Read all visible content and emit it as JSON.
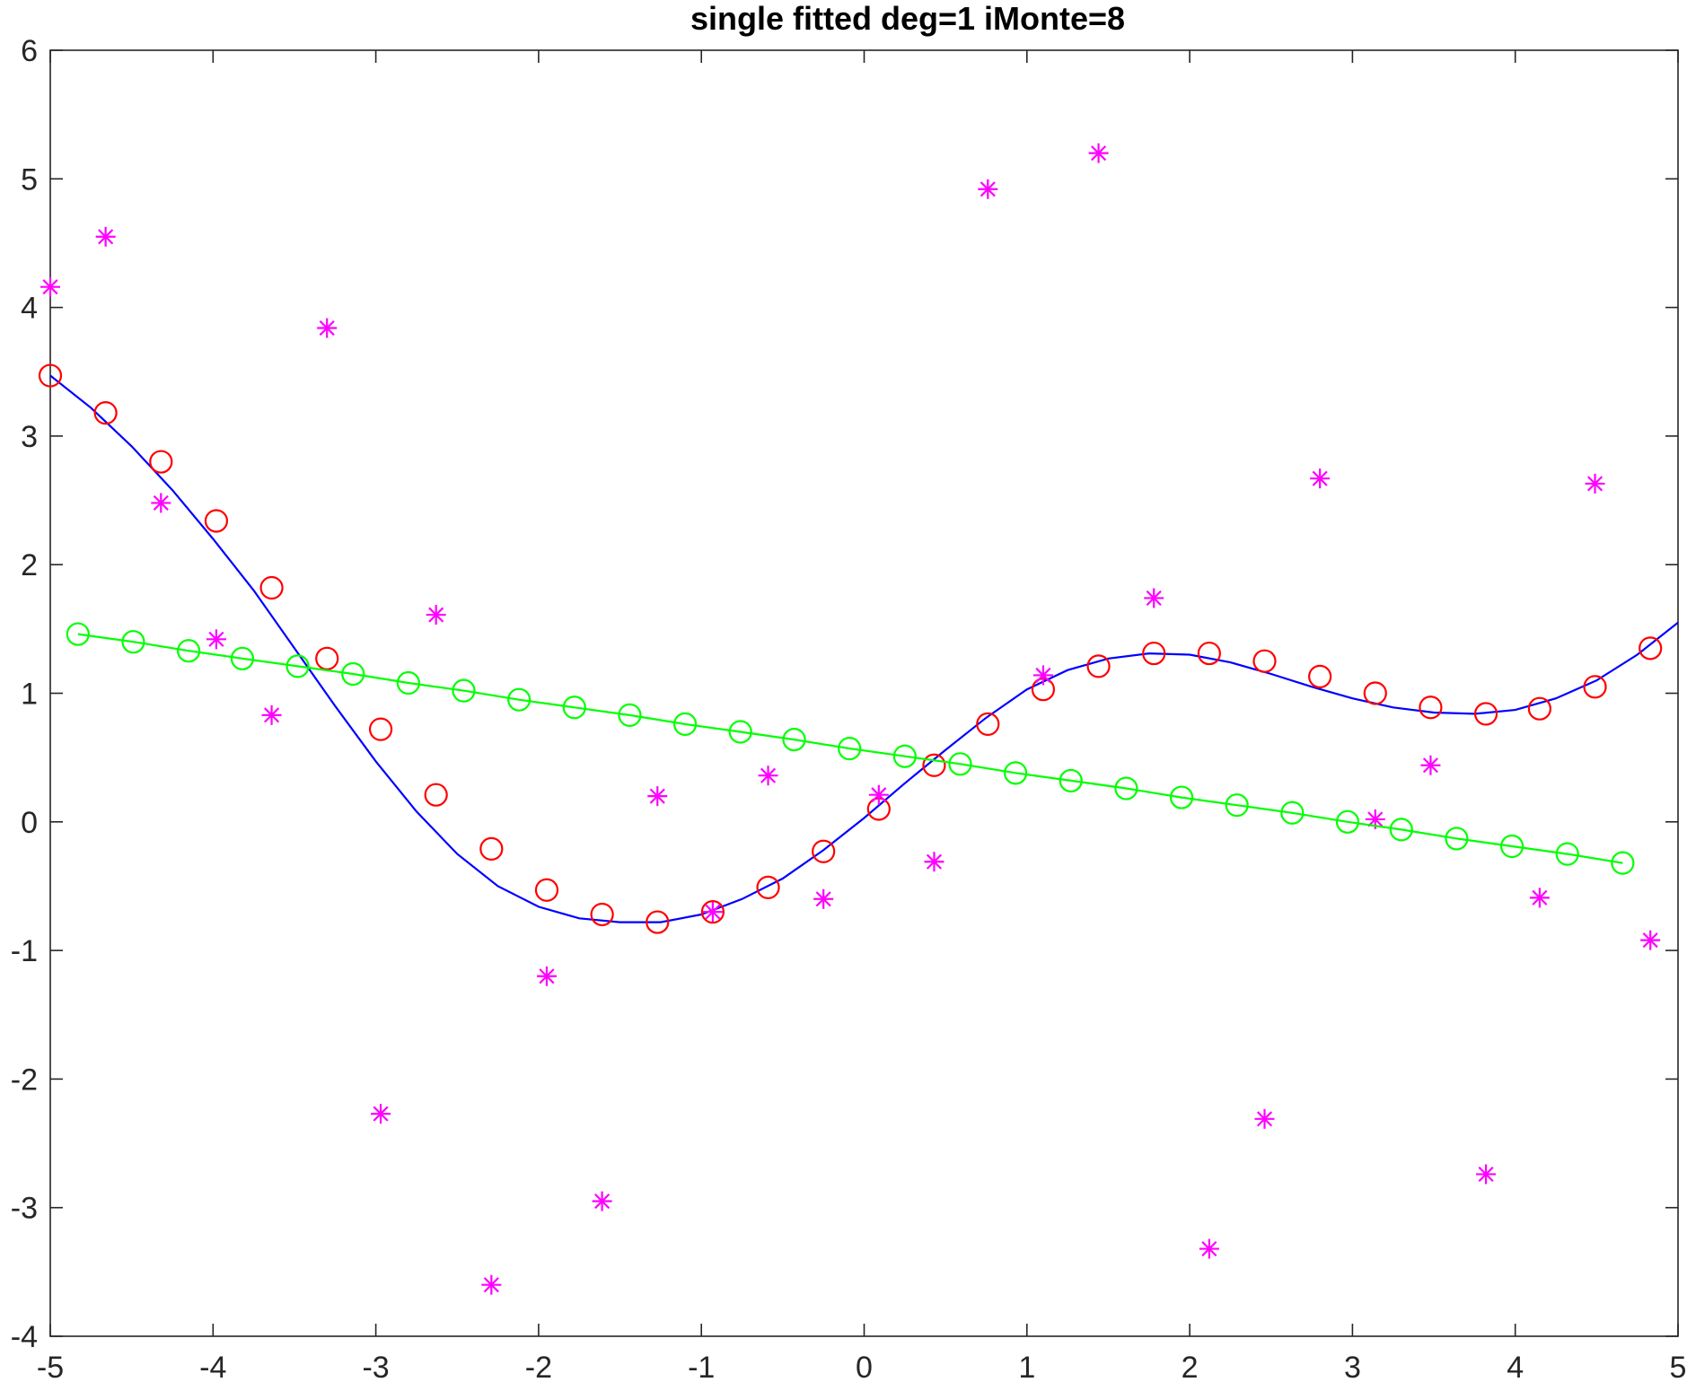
{
  "chart_data": {
    "type": "scatter",
    "title": "single fitted deg=1 iMonte=8",
    "xlabel": "",
    "ylabel": "",
    "xlim": [
      -5,
      5
    ],
    "ylim": [
      -4,
      6
    ],
    "x_ticks": [
      -5,
      -4,
      -3,
      -2,
      -1,
      0,
      1,
      2,
      3,
      4,
      5
    ],
    "y_ticks": [
      -4,
      -3,
      -2,
      -1,
      0,
      1,
      2,
      3,
      4,
      5,
      6
    ],
    "grid": false,
    "legend": "none",
    "series": [
      {
        "kind": "curve",
        "style": "line",
        "color": "#0000ff",
        "x": [
          -5,
          -4.75,
          -4.5,
          -4.25,
          -4,
          -3.75,
          -3.5,
          -3.25,
          -3,
          -2.75,
          -2.5,
          -2.25,
          -2,
          -1.75,
          -1.5,
          -1.25,
          -1,
          -0.75,
          -0.5,
          -0.25,
          0,
          0.25,
          0.5,
          0.75,
          1,
          1.25,
          1.5,
          1.75,
          2,
          2.25,
          2.5,
          2.75,
          3,
          3.25,
          3.5,
          3.75,
          4,
          4.25,
          4.5,
          4.75,
          5
        ],
        "y": [
          3.47,
          3.22,
          2.92,
          2.58,
          2.2,
          1.8,
          1.35,
          0.9,
          0.47,
          0.08,
          -0.25,
          -0.5,
          -0.66,
          -0.75,
          -0.78,
          -0.78,
          -0.72,
          -0.6,
          -0.44,
          -0.22,
          0.03,
          0.3,
          0.56,
          0.81,
          1.03,
          1.18,
          1.27,
          1.31,
          1.3,
          1.24,
          1.15,
          1.05,
          0.96,
          0.89,
          0.85,
          0.84,
          0.87,
          0.96,
          1.1,
          1.3,
          1.55
        ]
      },
      {
        "kind": "fit-samples",
        "style": "circle",
        "color": "#ff0000",
        "x": [
          -5.0,
          -4.66,
          -4.32,
          -3.98,
          -3.64,
          -3.3,
          -2.97,
          -2.63,
          -2.29,
          -1.95,
          -1.61,
          -1.27,
          -0.93,
          -0.59,
          -0.25,
          0.09,
          0.43,
          0.76,
          1.1,
          1.44,
          1.78,
          2.12,
          2.46,
          2.8,
          3.14,
          3.48,
          3.82,
          4.15,
          4.49,
          4.83
        ],
        "y": [
          3.47,
          3.18,
          2.8,
          2.34,
          1.82,
          1.27,
          0.72,
          0.21,
          -0.21,
          -0.53,
          -0.72,
          -0.78,
          -0.7,
          -0.51,
          -0.23,
          0.1,
          0.44,
          0.76,
          1.03,
          1.21,
          1.31,
          1.31,
          1.25,
          1.13,
          1.0,
          0.89,
          0.84,
          0.88,
          1.05,
          1.35
        ]
      },
      {
        "kind": "noisy-data",
        "style": "asterisk",
        "color": "#ff00ff",
        "x": [
          -5.0,
          -4.66,
          -4.32,
          -3.98,
          -3.64,
          -3.3,
          -2.97,
          -2.63,
          -2.29,
          -1.95,
          -1.61,
          -1.27,
          -0.93,
          -0.59,
          -0.25,
          0.09,
          0.43,
          0.76,
          1.1,
          1.44,
          1.78,
          2.12,
          2.46,
          2.8,
          3.14,
          3.48,
          3.82,
          4.15,
          4.49,
          4.83
        ],
        "y": [
          4.16,
          4.55,
          2.48,
          1.42,
          0.83,
          3.84,
          -2.27,
          1.61,
          -3.6,
          -1.2,
          -2.95,
          0.2,
          -0.7,
          0.36,
          -0.6,
          0.21,
          -0.31,
          4.92,
          1.14,
          5.2,
          1.74,
          -3.32,
          -2.31,
          2.67,
          0.02,
          0.44,
          -2.74,
          -0.59,
          2.63,
          -0.92
        ]
      },
      {
        "kind": "linear-fit",
        "style": "line-circle",
        "color": "#00ff00",
        "x": [
          -4.83,
          -4.49,
          -4.15,
          -3.82,
          -3.48,
          -3.14,
          -2.8,
          -2.46,
          -2.12,
          -1.78,
          -1.44,
          -1.1,
          -0.76,
          -0.43,
          -0.09,
          0.25,
          0.59,
          0.93,
          1.27,
          1.61,
          1.95,
          2.29,
          2.63,
          2.97,
          3.3,
          3.64,
          3.98,
          4.32,
          4.66
        ],
        "y": [
          1.46,
          1.4,
          1.33,
          1.27,
          1.21,
          1.15,
          1.08,
          1.02,
          0.95,
          0.89,
          0.83,
          0.76,
          0.7,
          0.64,
          0.57,
          0.51,
          0.45,
          0.38,
          0.32,
          0.26,
          0.19,
          0.13,
          0.07,
          0.0,
          -0.06,
          -0.13,
          -0.19,
          -0.25,
          -0.32
        ]
      }
    ]
  }
}
